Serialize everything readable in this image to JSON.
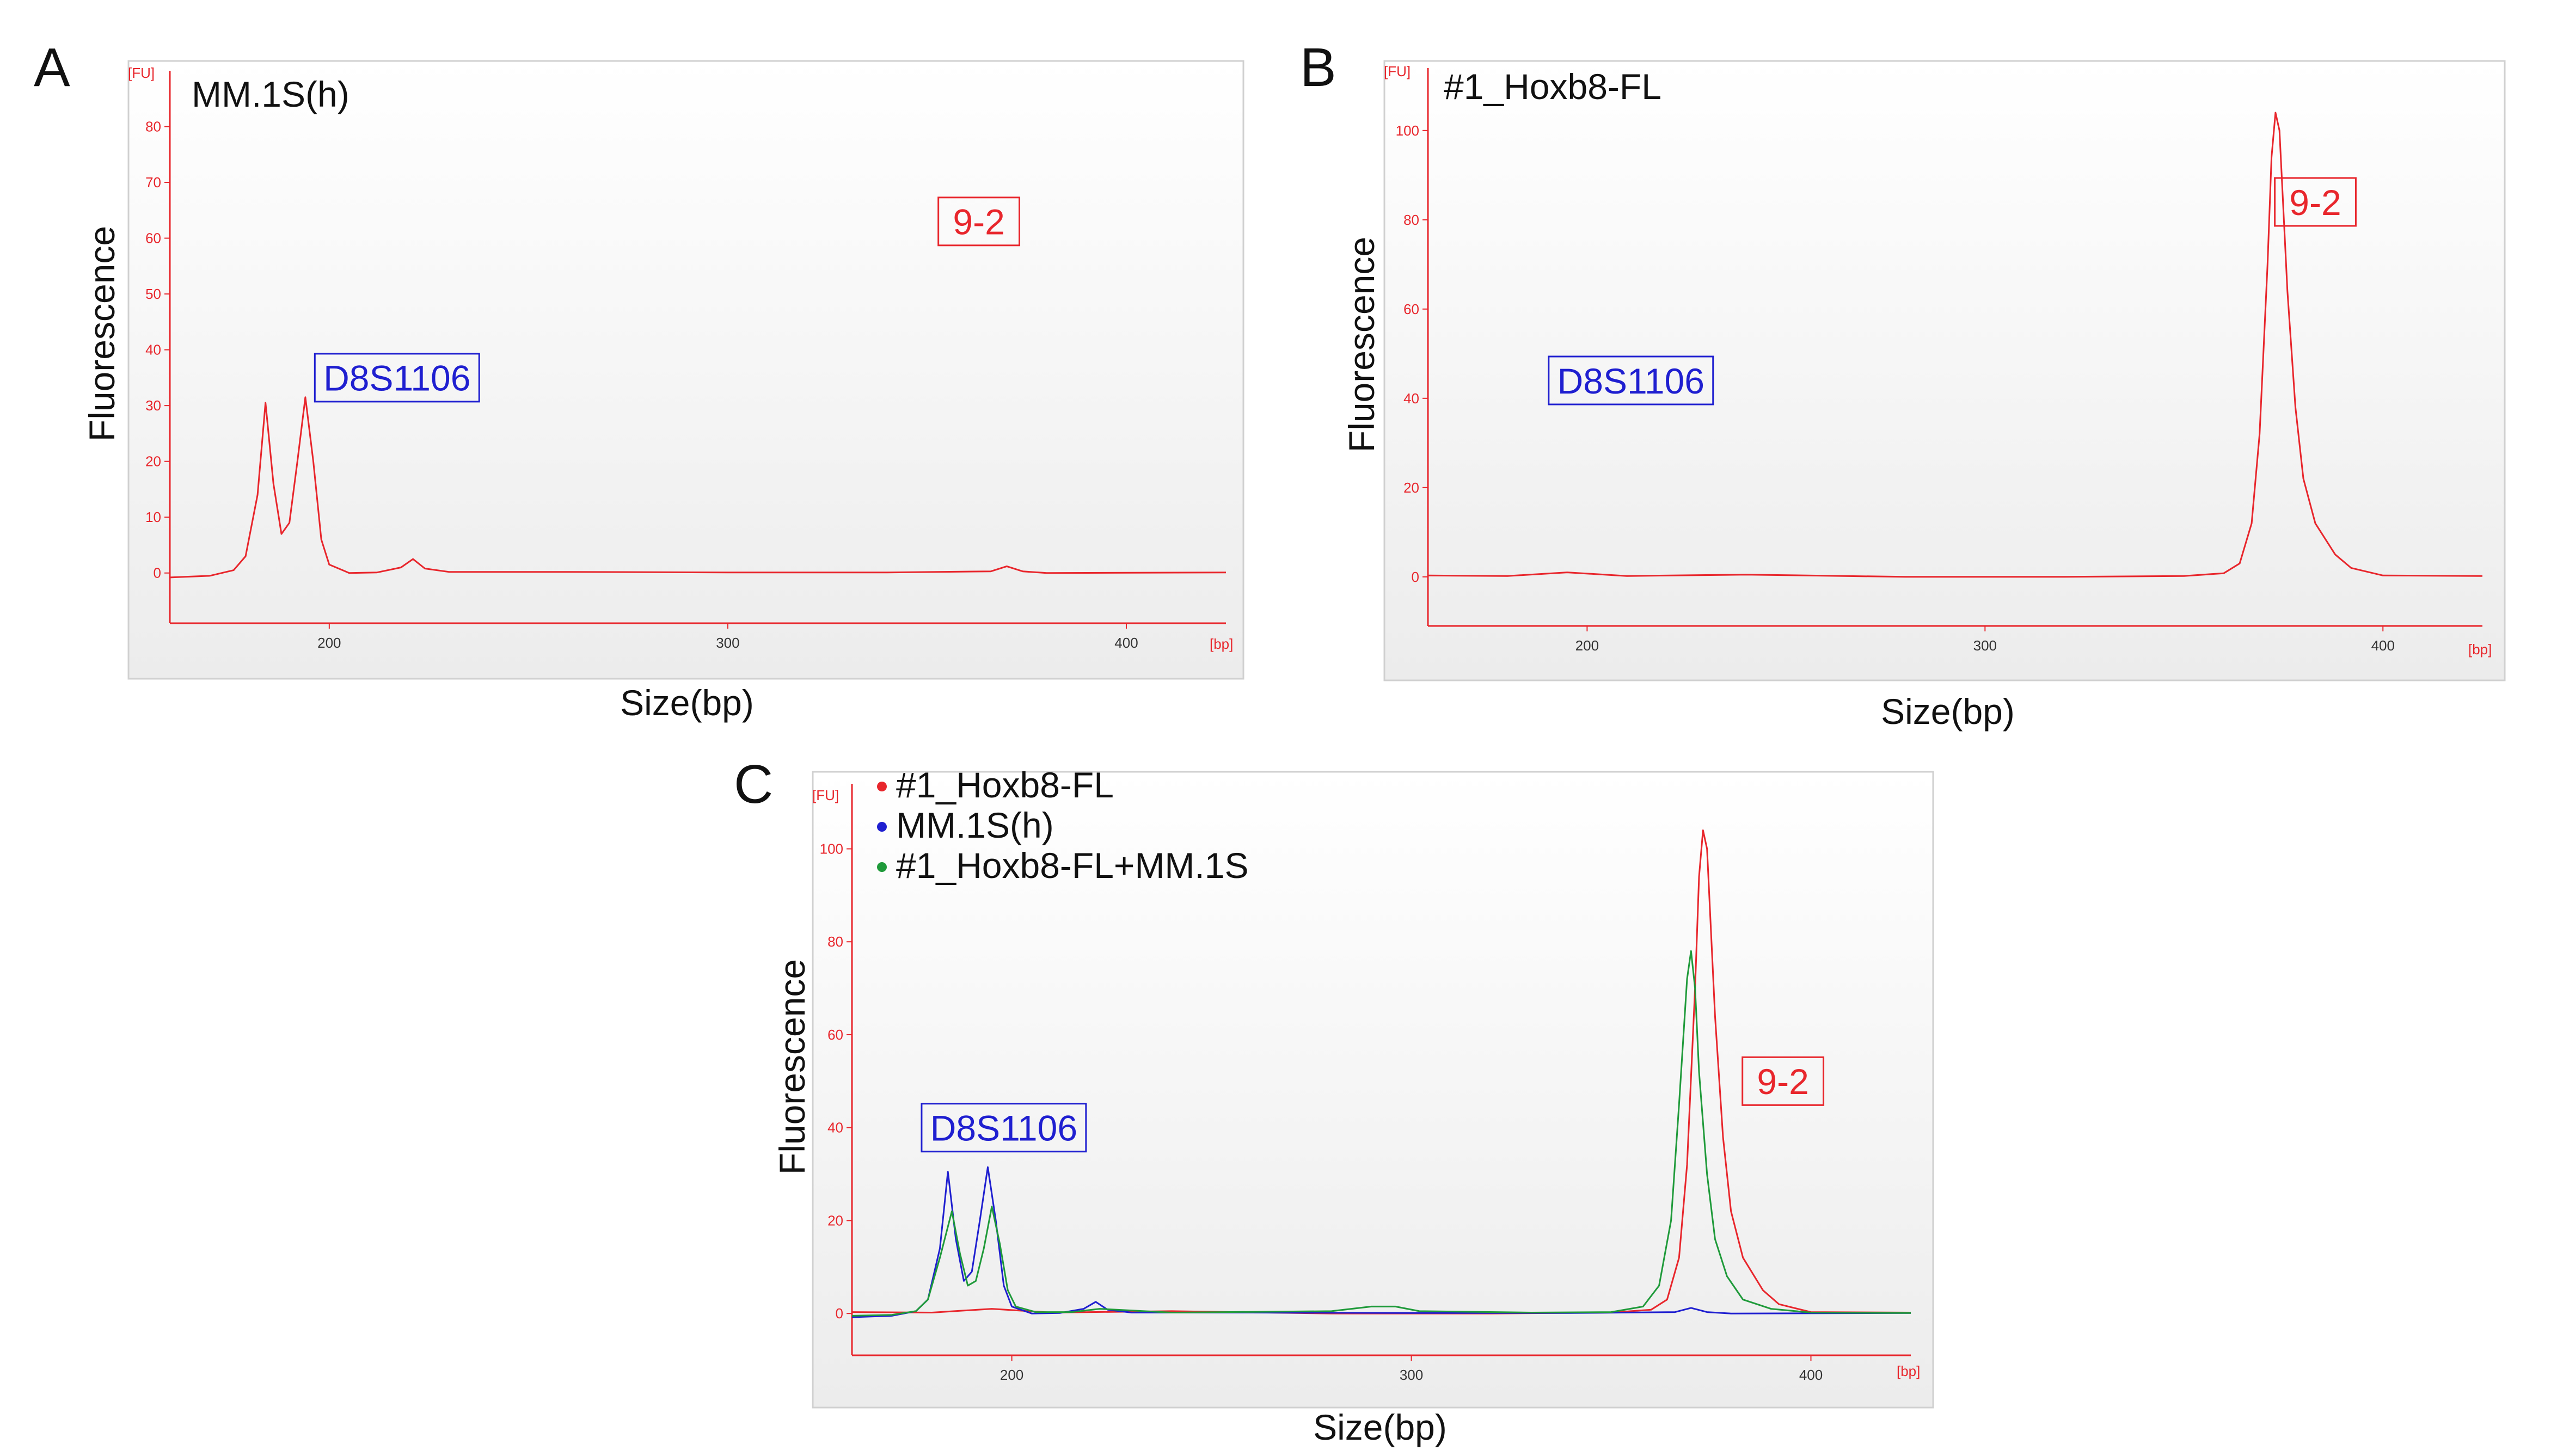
{
  "colors": {
    "axis": "#e8262c",
    "red": "#e8262c",
    "blue": "#1f1fd0",
    "green": "#1f9a3a",
    "frame": "#d0d0d0",
    "label": "#111111"
  },
  "chart_data": [
    {
      "panel": "A",
      "type": "line",
      "title": "MM.1S(h)",
      "xlabel": "Size(bp)",
      "ylabel": "Fluorescence",
      "y_unit": "[FU]",
      "x_unit": "[bp]",
      "xlim": [
        160,
        425
      ],
      "ylim": [
        -9,
        90
      ],
      "xticks": [
        200,
        300,
        400
      ],
      "yticks": [
        0,
        10,
        20,
        30,
        40,
        50,
        60,
        70,
        80
      ],
      "annotations": [
        {
          "text": "D8S1106",
          "x": 217,
          "y": 35,
          "color": "blue"
        },
        {
          "text": "9-2",
          "x": 363,
          "y": 63,
          "color": "red"
        }
      ],
      "series": [
        {
          "name": "MM.1S(h)",
          "color": "red",
          "x": [
            160,
            170,
            176,
            179,
            182,
            184,
            186,
            188,
            190,
            192,
            194,
            196,
            198,
            200,
            205,
            212,
            218,
            221,
            224,
            230,
            260,
            300,
            340,
            366,
            370,
            374,
            380,
            425
          ],
          "y": [
            -0.8,
            -0.5,
            0.5,
            3,
            14,
            30.5,
            16,
            7,
            9,
            20,
            31.5,
            20,
            6,
            1.5,
            0,
            0.1,
            1,
            2.5,
            0.8,
            0.2,
            0.2,
            0.1,
            0.1,
            0.3,
            1.2,
            0.3,
            0,
            0.1
          ]
        }
      ]
    },
    {
      "panel": "B",
      "type": "line",
      "title": "#1_Hoxb8-FL",
      "xlabel": "Size(bp)",
      "ylabel": "Fluorescence",
      "y_unit": "[FU]",
      "x_unit": "[bp]",
      "xlim": [
        160,
        425
      ],
      "ylim": [
        -11,
        114
      ],
      "xticks": [
        200,
        300,
        400
      ],
      "yticks": [
        0,
        20,
        40,
        60,
        80,
        100
      ],
      "annotations": [
        {
          "text": "D8S1106",
          "x": 211,
          "y": 44,
          "color": "blue"
        },
        {
          "text": "9-2",
          "x": 383,
          "y": 84,
          "color": "red"
        }
      ],
      "series": [
        {
          "name": "#1_Hoxb8-FL",
          "color": "red",
          "x": [
            160,
            180,
            195,
            210,
            240,
            280,
            320,
            350,
            360,
            364,
            367,
            369,
            371,
            372,
            373,
            374,
            376,
            378,
            380,
            383,
            388,
            392,
            400,
            425
          ],
          "y": [
            0.3,
            0.2,
            1,
            0.2,
            0.5,
            0,
            0,
            0.2,
            0.8,
            3,
            12,
            32,
            70,
            94,
            104,
            100,
            64,
            38,
            22,
            12,
            5,
            2,
            0.3,
            0.2
          ]
        }
      ]
    },
    {
      "panel": "C",
      "type": "line",
      "title": "",
      "xlabel": "Size(bp)",
      "ylabel": "Fluorescence",
      "y_unit": "[FU]",
      "x_unit": "[bp]",
      "xlim": [
        160,
        425
      ],
      "ylim": [
        -9,
        114
      ],
      "xticks": [
        200,
        300,
        400
      ],
      "yticks": [
        0,
        20,
        40,
        60,
        80,
        100
      ],
      "legend": [
        "#1_Hoxb8-FL",
        "MM.1S(h)",
        "#1_Hoxb8-FL+MM.1S"
      ],
      "annotations": [
        {
          "text": "D8S1106",
          "x": 198,
          "y": 40,
          "color": "blue"
        },
        {
          "text": "9-2",
          "x": 393,
          "y": 50,
          "color": "red"
        }
      ],
      "series": [
        {
          "name": "#1_Hoxb8-FL",
          "color": "red",
          "x": [
            160,
            180,
            195,
            210,
            240,
            280,
            320,
            350,
            360,
            364,
            367,
            369,
            371,
            372,
            373,
            374,
            376,
            378,
            380,
            383,
            388,
            392,
            400,
            425
          ],
          "y": [
            0.3,
            0.2,
            1,
            0.2,
            0.5,
            0,
            0,
            0.2,
            0.8,
            3,
            12,
            32,
            70,
            94,
            104,
            100,
            64,
            38,
            22,
            12,
            5,
            2,
            0.3,
            0.2
          ]
        },
        {
          "name": "MM.1S(h)",
          "color": "blue",
          "x": [
            160,
            170,
            176,
            179,
            182,
            184,
            186,
            188,
            190,
            192,
            194,
            196,
            198,
            200,
            205,
            212,
            218,
            221,
            224,
            230,
            260,
            300,
            340,
            366,
            370,
            374,
            380,
            425
          ],
          "y": [
            -0.8,
            -0.5,
            0.5,
            3,
            14,
            30.5,
            16,
            7,
            9,
            20,
            31.5,
            20,
            6,
            1.5,
            0,
            0.1,
            1,
            2.5,
            0.8,
            0.2,
            0.2,
            0.1,
            0.1,
            0.3,
            1.2,
            0.3,
            0,
            0.1
          ]
        },
        {
          "name": "#1_Hoxb8-FL+MM.1S",
          "color": "green",
          "x": [
            160,
            170,
            176,
            179,
            182,
            185,
            187,
            189,
            191,
            193,
            195,
            197,
            199,
            201,
            206,
            215,
            222,
            240,
            280,
            290,
            296,
            302,
            330,
            350,
            358,
            362,
            365,
            367,
            369,
            370,
            371,
            372,
            374,
            376,
            379,
            383,
            390,
            400,
            425
          ],
          "y": [
            -0.5,
            -0.3,
            0.5,
            3,
            12,
            22,
            13,
            6,
            7,
            14,
            23,
            15,
            5,
            1.5,
            0.3,
            0.3,
            1,
            0.2,
            0.5,
            1.5,
            1.5,
            0.5,
            0.2,
            0.3,
            1.5,
            6,
            20,
            45,
            72,
            78,
            70,
            52,
            30,
            16,
            8,
            3,
            1,
            0.2,
            0.1
          ]
        }
      ]
    }
  ]
}
